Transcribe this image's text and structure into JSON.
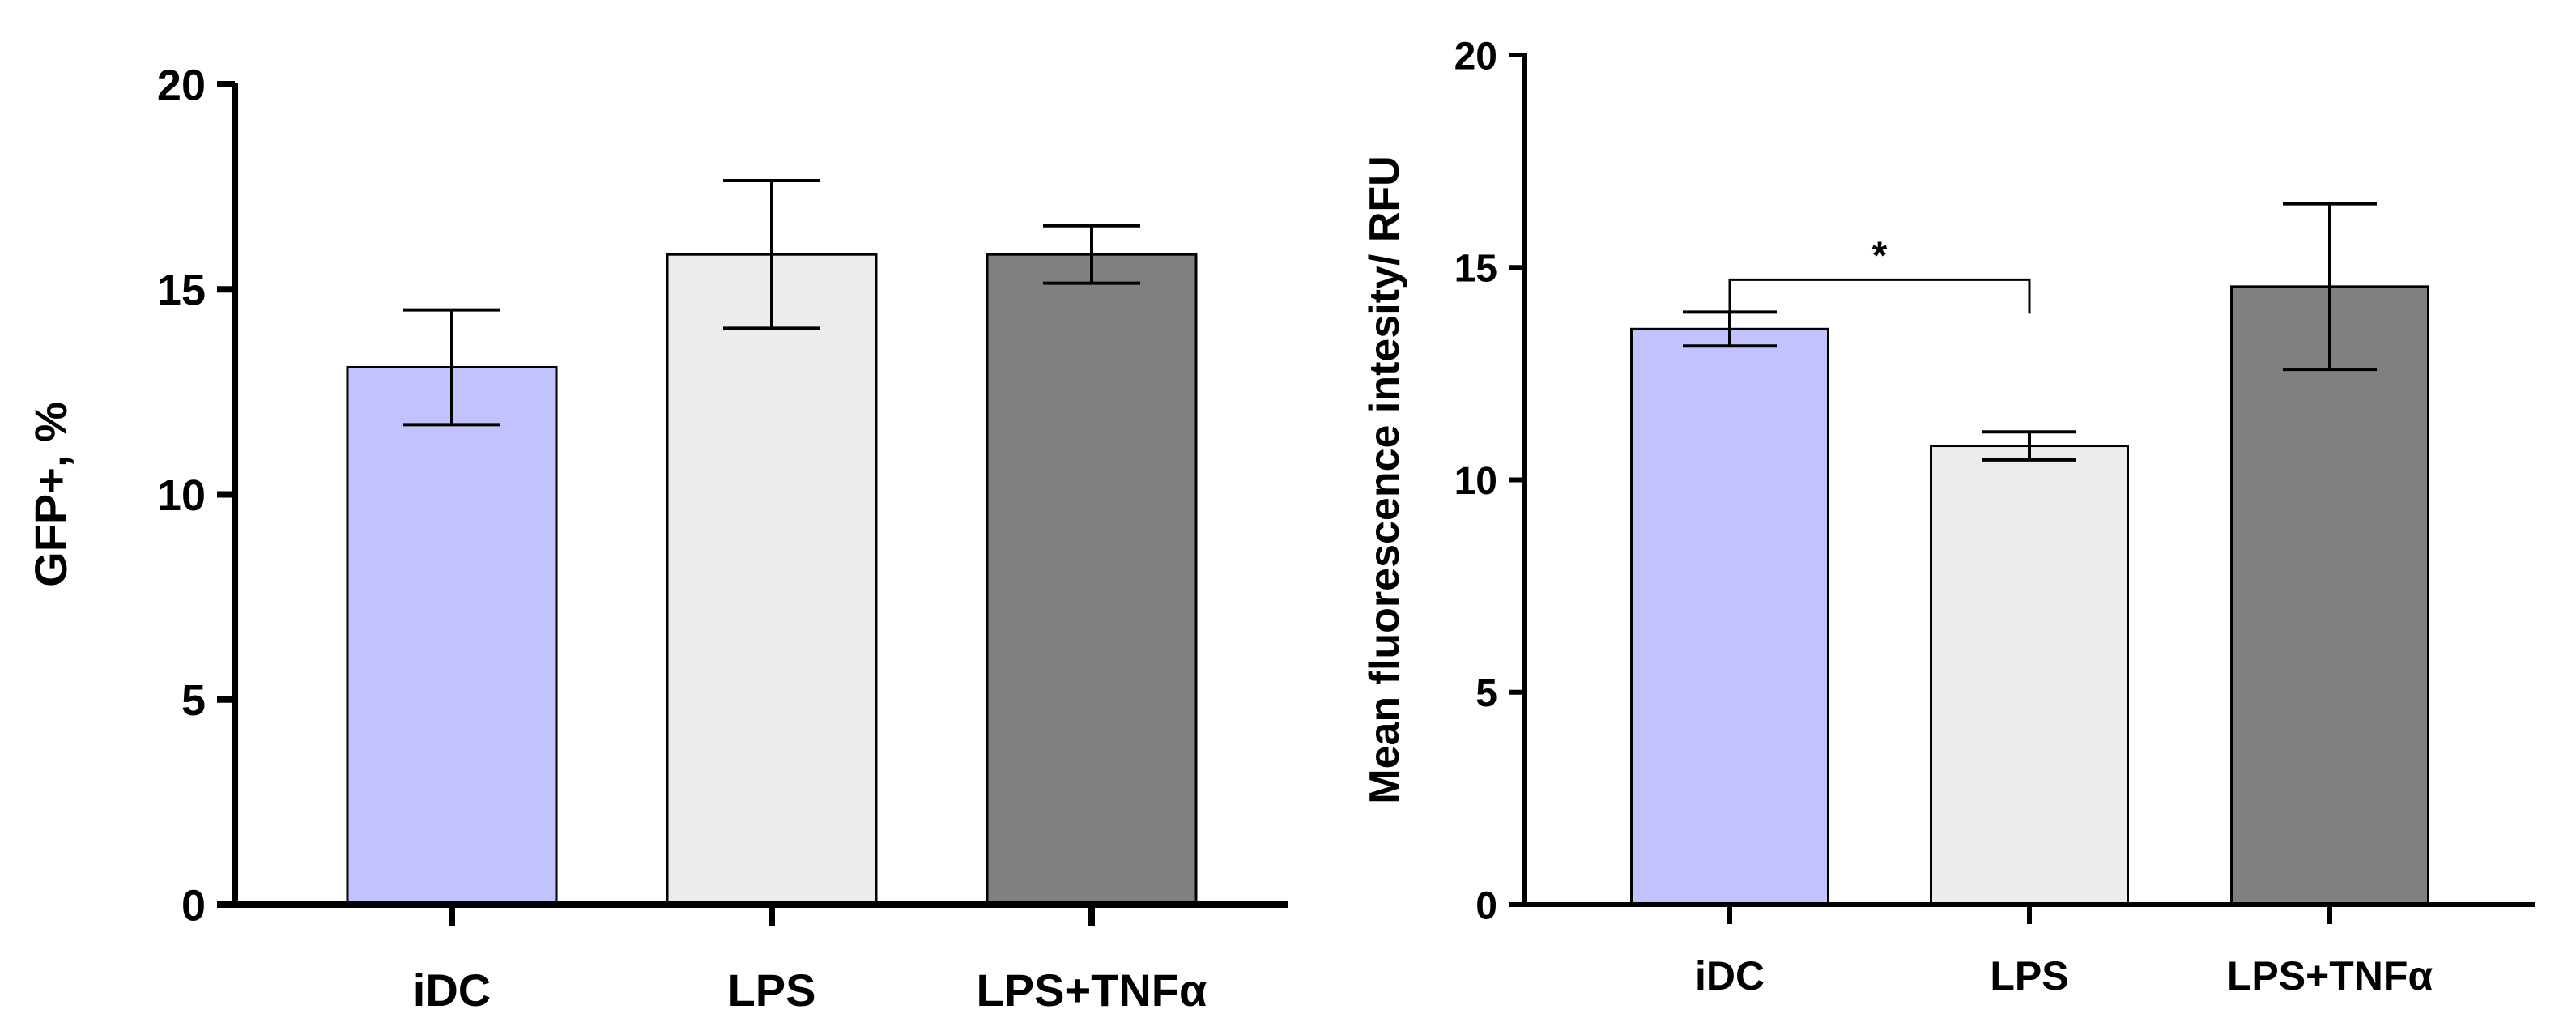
{
  "chart_data": [
    {
      "type": "bar",
      "title": "",
      "xlabel": "",
      "ylabel": "GFP+, %",
      "ylim": [
        0,
        20
      ],
      "yticks": [
        0,
        5,
        10,
        15,
        20
      ],
      "categories": [
        "iDC",
        "LPS",
        "LPS+TNFα"
      ],
      "values": [
        13.1,
        15.85,
        15.85
      ],
      "errors": [
        1.4,
        1.8,
        0.7
      ],
      "colors": [
        "#c2c2ff",
        "#ececec",
        "#808080"
      ],
      "significance": []
    },
    {
      "type": "bar",
      "title": "",
      "xlabel": "",
      "ylabel": "Mean fluorescence intesity/ RFU",
      "ylim": [
        0,
        20
      ],
      "yticks": [
        0,
        5,
        10,
        15,
        20
      ],
      "categories": [
        "iDC",
        "LPS",
        "LPS+TNFα"
      ],
      "values": [
        13.55,
        10.8,
        14.55
      ],
      "errors": [
        0.4,
        0.33,
        1.95
      ],
      "colors": [
        "#c2c2ff",
        "#ececec",
        "#808080"
      ],
      "significance": [
        {
          "from": 0,
          "to": 1,
          "label": "*"
        }
      ]
    }
  ]
}
